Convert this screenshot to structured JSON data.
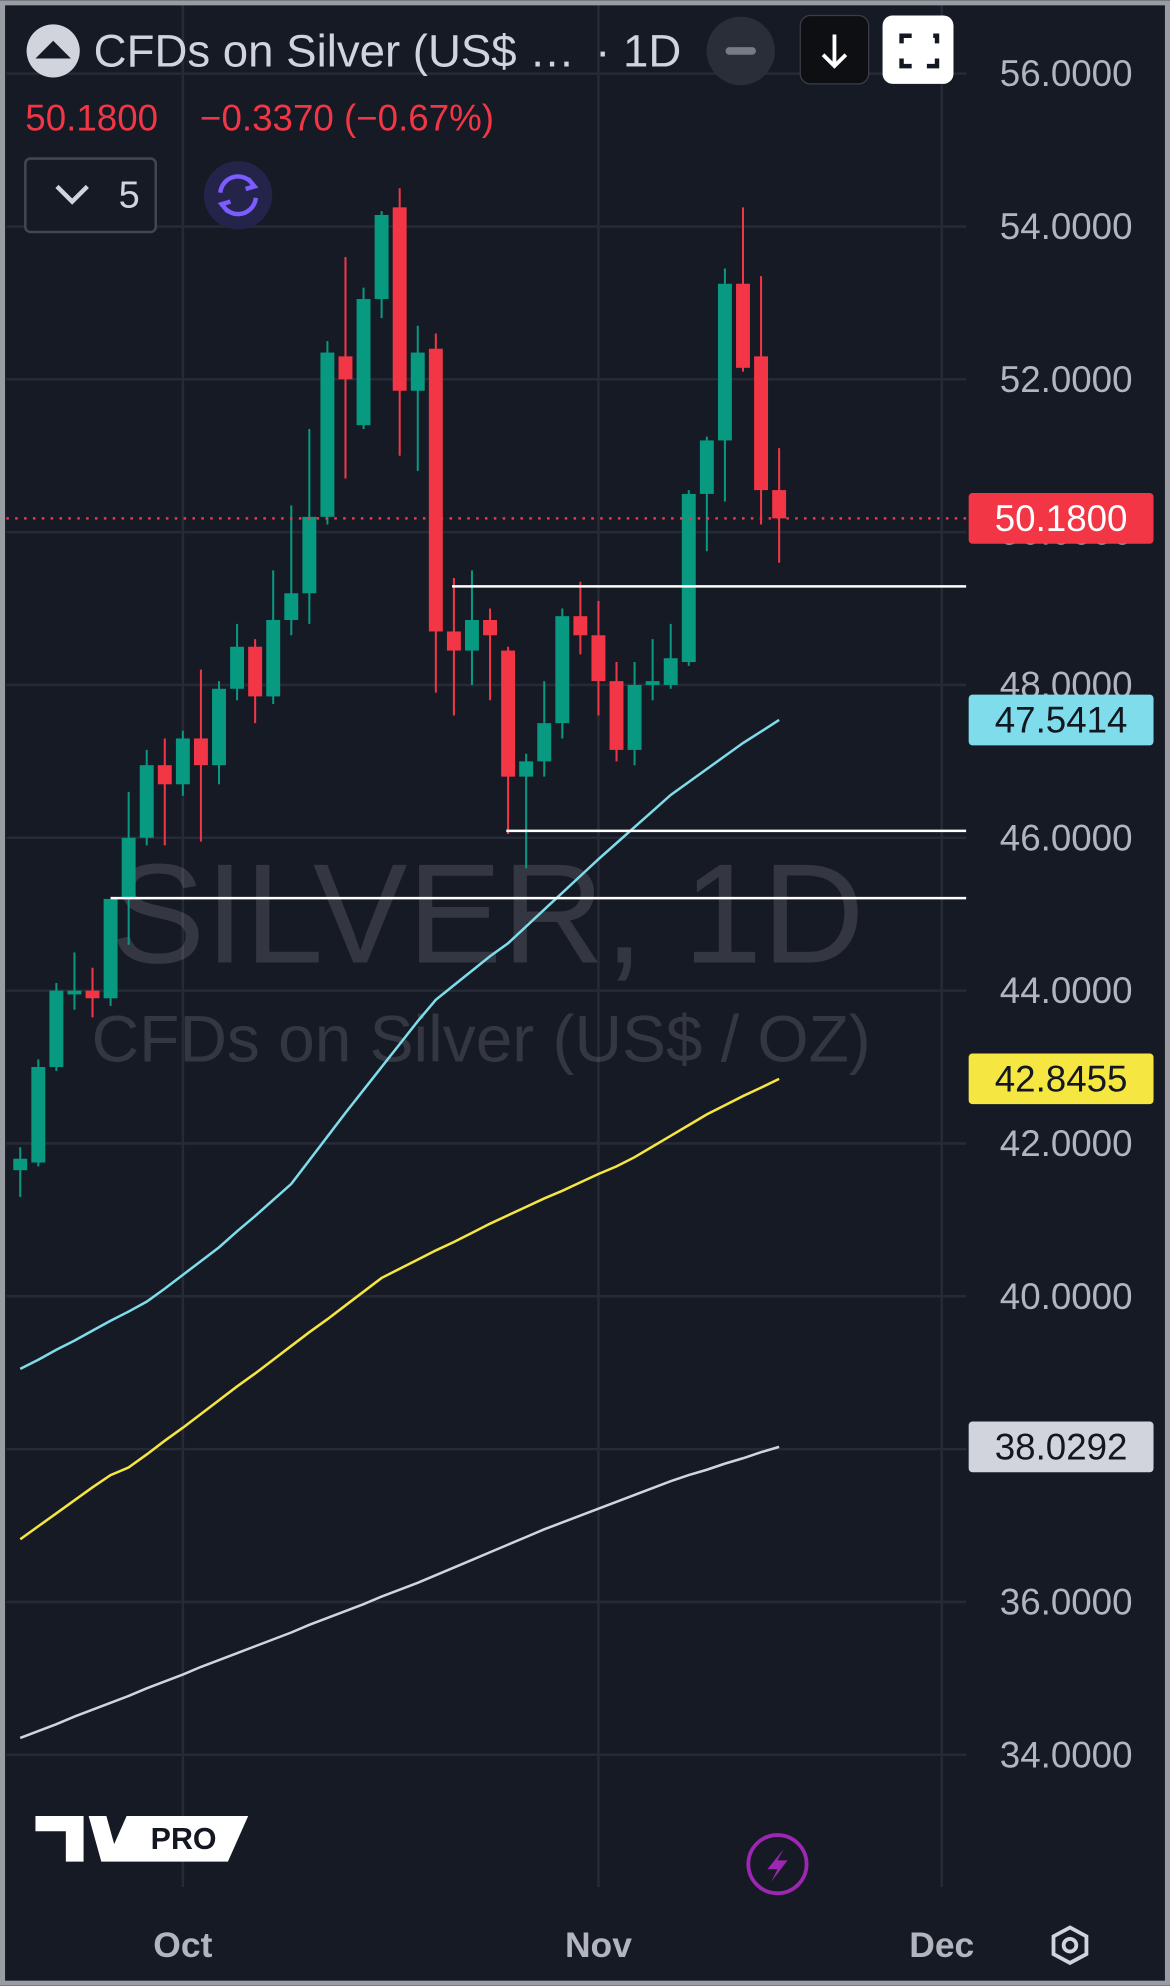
{
  "chart_data": {
    "type": "candlestick",
    "title": "CFDs on Silver (US$ …",
    "interval": "· 1D",
    "price_label": "50.1800",
    "change_label": "−0.3370 (−0.67%)",
    "indicator_count": "5",
    "watermark": [
      "SILVER, 1D",
      "CFDs on Silver (US$ / OZ)"
    ],
    "logo_text": "PRO",
    "grid": true,
    "x": [
      0,
      1,
      2,
      3,
      4,
      5,
      6,
      7,
      8,
      9,
      10,
      11,
      12,
      13,
      14,
      15,
      16,
      17,
      18,
      19,
      20,
      21,
      22,
      23,
      24,
      25,
      26,
      27,
      28,
      29,
      30,
      31,
      32,
      33,
      34,
      35,
      36,
      37,
      38,
      39,
      40,
      41,
      42
    ],
    "xlim": [
      -0.77,
      52.35
    ],
    "xticks": [
      {
        "value": 9,
        "label": "Oct"
      },
      {
        "value": 32,
        "label": "Nov"
      },
      {
        "value": 51,
        "label": "Dec"
      }
    ],
    "ylim": [
      32.27,
      56.96
    ],
    "yticks": [
      {
        "value": 34,
        "label": "34.0000"
      },
      {
        "value": 36,
        "label": "36.0000"
      },
      {
        "value": 38,
        "label": "38.0000"
      },
      {
        "value": 40,
        "label": "40.0000"
      },
      {
        "value": 42,
        "label": "42.0000"
      },
      {
        "value": 44,
        "label": "44.0000"
      },
      {
        "value": 46,
        "label": "46.0000"
      },
      {
        "value": 48,
        "label": "48.0000"
      },
      {
        "value": 50,
        "label": "50.0000"
      },
      {
        "value": 52,
        "label": "52.0000"
      },
      {
        "value": 54,
        "label": "54.0000"
      },
      {
        "value": 56,
        "label": "56.0000"
      }
    ],
    "ohlc": {
      "up_color": "#089981",
      "down_color": "#f23645",
      "open": [
        41.65,
        41.75,
        43.0,
        43.95,
        44.0,
        43.9,
        45.2,
        46.0,
        46.95,
        46.7,
        47.3,
        46.95,
        47.95,
        48.5,
        47.85,
        48.85,
        49.2,
        50.2,
        52.3,
        51.4,
        53.05,
        54.25,
        51.85,
        52.4,
        48.7,
        48.45,
        48.85,
        48.45,
        46.8,
        47.0,
        47.5,
        48.9,
        48.65,
        48.05,
        47.15,
        48.0,
        48.0,
        48.3,
        50.5,
        51.2,
        53.25,
        52.3,
        50.55
      ],
      "high": [
        41.95,
        43.1,
        44.1,
        44.5,
        44.3,
        45.2,
        46.6,
        47.15,
        47.3,
        47.4,
        48.2,
        48.05,
        48.8,
        48.6,
        49.5,
        50.35,
        51.35,
        52.5,
        53.6,
        53.2,
        54.2,
        54.5,
        52.7,
        52.6,
        49.4,
        49.5,
        49.0,
        48.5,
        47.1,
        48.05,
        49.0,
        49.35,
        49.1,
        48.3,
        48.3,
        48.6,
        48.8,
        50.55,
        51.25,
        53.45,
        54.25,
        53.35,
        51.1
      ],
      "low": [
        41.3,
        41.7,
        42.95,
        43.75,
        43.65,
        43.8,
        44.6,
        45.9,
        45.9,
        46.55,
        45.95,
        46.7,
        47.8,
        47.5,
        47.75,
        48.65,
        48.8,
        50.1,
        50.7,
        51.35,
        52.8,
        51.0,
        50.8,
        47.9,
        47.6,
        48.0,
        47.8,
        46.05,
        45.6,
        46.8,
        47.3,
        48.4,
        47.6,
        47.0,
        46.95,
        47.8,
        47.95,
        48.25,
        49.75,
        50.4,
        52.1,
        50.1,
        49.6
      ],
      "close": [
        41.8,
        43.0,
        44.0,
        44.0,
        43.9,
        45.2,
        46.0,
        46.95,
        46.7,
        47.3,
        46.95,
        47.95,
        48.5,
        47.85,
        48.85,
        49.2,
        50.2,
        52.35,
        52.0,
        53.05,
        54.15,
        51.85,
        52.35,
        48.7,
        48.45,
        48.85,
        48.65,
        46.8,
        47.0,
        47.5,
        48.9,
        48.65,
        48.05,
        47.15,
        48.0,
        48.05,
        48.35,
        50.5,
        51.2,
        53.25,
        52.15,
        50.55,
        50.18
      ]
    },
    "lines": [
      {
        "color": "#7fdcea",
        "last_label": "47.5414",
        "values": [
          39.05,
          39.17,
          39.3,
          39.42,
          39.55,
          39.68,
          39.8,
          39.93,
          40.1,
          40.28,
          40.46,
          40.64,
          40.85,
          41.05,
          41.26,
          41.47,
          41.78,
          42.09,
          42.4,
          42.7,
          43.0,
          43.3,
          43.6,
          43.88,
          44.07,
          44.26,
          44.45,
          44.62,
          44.84,
          45.06,
          45.28,
          45.5,
          45.72,
          45.93,
          46.14,
          46.35,
          46.56,
          46.73,
          46.9,
          47.07,
          47.24,
          47.39,
          47.5414
        ]
      },
      {
        "color": "#f5e642",
        "last_label": "42.8455",
        "values": [
          36.82,
          36.99,
          37.16,
          37.33,
          37.5,
          37.66,
          37.76,
          37.93,
          38.11,
          38.28,
          38.46,
          38.64,
          38.82,
          38.99,
          39.17,
          39.35,
          39.53,
          39.7,
          39.88,
          40.06,
          40.24,
          40.36,
          40.48,
          40.6,
          40.71,
          40.83,
          40.95,
          41.06,
          41.17,
          41.28,
          41.38,
          41.49,
          41.6,
          41.7,
          41.82,
          41.96,
          42.1,
          42.24,
          42.38,
          42.5,
          42.62,
          42.73,
          42.8455
        ]
      },
      {
        "color": "#d1d4dc",
        "last_label": "38.0292",
        "values": [
          34.22,
          34.31,
          34.4,
          34.5,
          34.59,
          34.68,
          34.77,
          34.87,
          34.96,
          35.05,
          35.15,
          35.24,
          35.33,
          35.42,
          35.51,
          35.6,
          35.7,
          35.79,
          35.88,
          35.97,
          36.07,
          36.16,
          36.25,
          36.35,
          36.45,
          36.55,
          36.65,
          36.75,
          36.85,
          36.95,
          37.04,
          37.13,
          37.22,
          37.31,
          37.4,
          37.49,
          37.58,
          37.66,
          37.73,
          37.81,
          37.88,
          37.96,
          38.0292
        ]
      }
    ],
    "levels": [
      {
        "value": 49.29,
        "start": 23.9
      },
      {
        "value": 46.09,
        "start": 26.9
      },
      {
        "value": 45.21,
        "start": 5.0
      }
    ],
    "level_color": "#ffffff"
  }
}
